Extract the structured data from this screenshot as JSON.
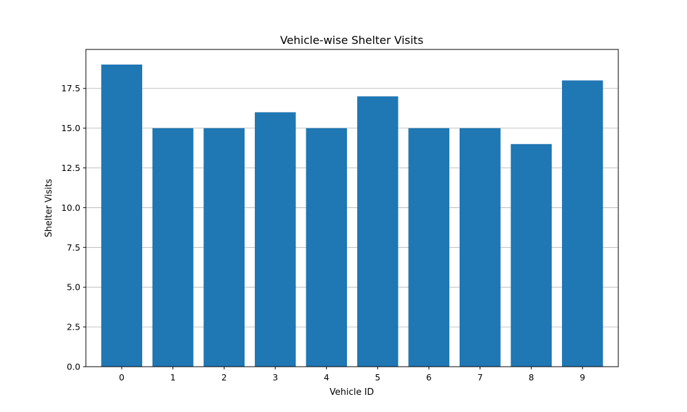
{
  "chart_data": {
    "type": "bar",
    "title": "Vehicle-wise Shelter Visits",
    "xlabel": "Vehicle ID",
    "ylabel": "Shelter Visits",
    "categories": [
      "0",
      "1",
      "2",
      "3",
      "4",
      "5",
      "6",
      "7",
      "8",
      "9"
    ],
    "values": [
      19,
      15,
      15,
      16,
      15,
      17,
      15,
      15,
      14,
      18
    ],
    "ylim": [
      0,
      19.95
    ],
    "yticks": [
      0,
      2.5,
      5,
      7.5,
      10,
      12.5,
      15,
      17.5
    ],
    "ytick_labels": [
      "0.0",
      "2.5",
      "5.0",
      "7.5",
      "10.0",
      "12.5",
      "15.0",
      "17.5"
    ],
    "grid": "y",
    "bar_color": "#1f77b4"
  }
}
